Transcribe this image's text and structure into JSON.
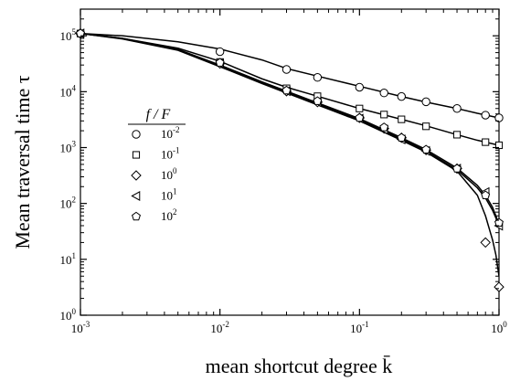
{
  "chart_data": {
    "type": "scatter",
    "xlabel": "mean shortcut degree k̄",
    "ylabel": "Mean traversal time τ",
    "xscale": "log",
    "yscale": "log",
    "xlim": [
      0.001,
      1
    ],
    "ylim": [
      1,
      300000
    ],
    "x_ticks": [
      {
        "base": "10",
        "exp": "-3",
        "value": 0.001
      },
      {
        "base": "10",
        "exp": "-2",
        "value": 0.01
      },
      {
        "base": "10",
        "exp": "-1",
        "value": 0.1
      },
      {
        "base": "10",
        "exp": "0",
        "value": 1
      }
    ],
    "y_ticks": [
      {
        "base": "10",
        "exp": "0",
        "value": 1
      },
      {
        "base": "10",
        "exp": "1",
        "value": 10
      },
      {
        "base": "10",
        "exp": "2",
        "value": 100
      },
      {
        "base": "10",
        "exp": "3",
        "value": 1000
      },
      {
        "base": "10",
        "exp": "4",
        "value": 10000
      },
      {
        "base": "10",
        "exp": "5",
        "value": 100000
      }
    ],
    "legend": {
      "title": "f / F",
      "placement": "left-middle",
      "entries": [
        {
          "marker": "circle",
          "base": "10",
          "exp": "-2"
        },
        {
          "marker": "square",
          "base": "10",
          "exp": "-1"
        },
        {
          "marker": "diamond",
          "base": "10",
          "exp": "0"
        },
        {
          "marker": "triangle-left",
          "base": "10",
          "exp": "1"
        },
        {
          "marker": "pentagon",
          "base": "10",
          "exp": "2"
        }
      ]
    },
    "x_points": [
      0.001,
      0.01,
      0.03,
      0.05,
      0.1,
      0.15,
      0.2,
      0.3,
      0.5,
      0.8,
      1.0
    ],
    "series": [
      {
        "marker": "circle",
        "values": [
          110000,
          52000,
          25000,
          18000,
          12000,
          9500,
          8200,
          6600,
          5000,
          3800,
          3400
        ]
      },
      {
        "marker": "square",
        "values": [
          110000,
          34000,
          11500,
          8300,
          5000,
          3900,
          3200,
          2400,
          1700,
          1250,
          1100
        ]
      },
      {
        "marker": "diamond",
        "values": [
          110000,
          32000,
          10200,
          6500,
          3400,
          2200,
          1500,
          900,
          420,
          20,
          3.2
        ]
      },
      {
        "marker": "triangle-left",
        "values": [
          110000,
          32000,
          10200,
          6500,
          3300,
          2100,
          1400,
          870,
          420,
          160,
          40
        ]
      },
      {
        "marker": "pentagon",
        "values": [
          110000,
          33000,
          10500,
          6800,
          3400,
          2300,
          1500,
          920,
          420,
          140,
          45
        ]
      }
    ],
    "fit_curves": [
      {
        "marker": "circle",
        "x": [
          0.001,
          0.002,
          0.005,
          0.01,
          0.02,
          0.03,
          0.05,
          0.1,
          0.2,
          0.3,
          0.5,
          0.7,
          1.0
        ],
        "y": [
          110000,
          100000,
          78000,
          58000,
          37000,
          26000,
          19000,
          12500,
          8200,
          6500,
          5000,
          4100,
          3400
        ]
      },
      {
        "marker": "square",
        "x": [
          0.001,
          0.002,
          0.005,
          0.01,
          0.02,
          0.03,
          0.05,
          0.1,
          0.2,
          0.3,
          0.5,
          0.7,
          1.0
        ],
        "y": [
          110000,
          90000,
          60000,
          35000,
          17000,
          12000,
          8300,
          5000,
          3200,
          2450,
          1700,
          1350,
          1100
        ]
      },
      {
        "marker": "diamond",
        "x": [
          0.001,
          0.002,
          0.005,
          0.01,
          0.02,
          0.05,
          0.1,
          0.2,
          0.3,
          0.5,
          0.7,
          0.8,
          0.9,
          0.95,
          0.98,
          1.0
        ],
        "y": [
          110000,
          88000,
          55000,
          28000,
          14000,
          5800,
          3000,
          1350,
          830,
          380,
          140,
          60,
          22,
          12,
          7,
          5
        ]
      },
      {
        "marker": "triangle-left",
        "x": [
          0.001,
          0.002,
          0.005,
          0.01,
          0.02,
          0.05,
          0.1,
          0.2,
          0.3,
          0.5,
          0.7,
          0.8,
          0.9,
          0.95,
          1.0
        ],
        "y": [
          110000,
          89000,
          56000,
          29000,
          14500,
          6000,
          3150,
          1420,
          870,
          400,
          190,
          125,
          75,
          55,
          40
        ]
      },
      {
        "marker": "pentagon",
        "x": [
          0.001,
          0.002,
          0.005,
          0.01,
          0.02,
          0.05,
          0.1,
          0.2,
          0.3,
          0.5,
          0.7,
          0.8,
          0.9,
          0.95,
          1.0
        ],
        "y": [
          110000,
          90000,
          57000,
          30000,
          15000,
          6300,
          3300,
          1500,
          920,
          430,
          210,
          140,
          85,
          60,
          42
        ]
      }
    ],
    "grid": false
  }
}
